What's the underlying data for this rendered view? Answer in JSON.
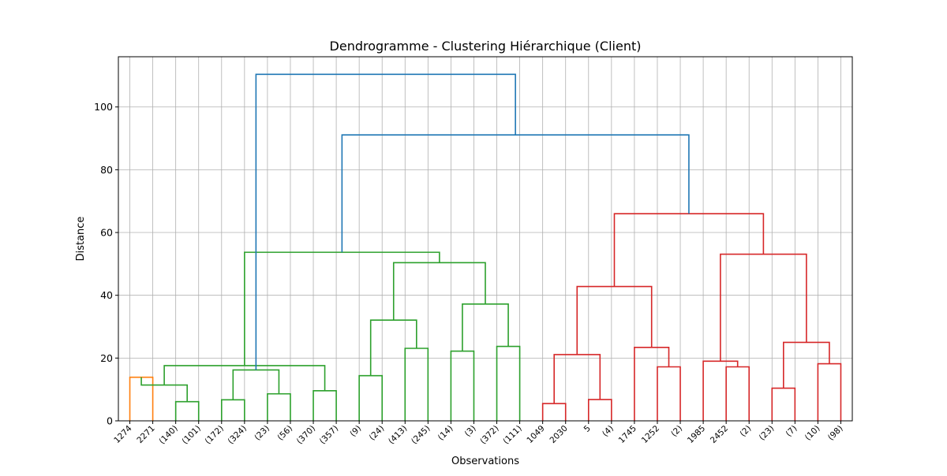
{
  "chart_data": {
    "type": "dendrogram",
    "title": "Dendrogramme - Clustering Hiérarchique (Client)",
    "xlabel": "Observations",
    "ylabel": "Distance",
    "ylim": [
      0,
      116
    ],
    "yticks": [
      0,
      20,
      40,
      60,
      80,
      100
    ],
    "grid": true,
    "leaves": [
      "1274",
      "2271",
      "(140)",
      "(101)",
      "(172)",
      "(324)",
      "(23)",
      "(56)",
      "(370)",
      "(357)",
      "(9)",
      "(24)",
      "(413)",
      "(245)",
      "(14)",
      "(3)",
      "(372)",
      "(111)",
      "1049",
      "2030",
      "5",
      "(4)",
      "1745",
      "1252",
      "(2)",
      "1985",
      "2452",
      "(2)",
      "(23)",
      "(7)",
      "(10)",
      "(98)"
    ],
    "colors": {
      "orange": "#ff7f0e",
      "green": "#2ca02c",
      "red": "#d62728",
      "blue": "#1f77b4",
      "grid": "#b0b0b0"
    },
    "links": [
      {
        "left": 0,
        "right": 1,
        "height": 13.9,
        "color": "orange"
      },
      {
        "left": 2,
        "right": 3,
        "height": 6.1,
        "color": "green"
      },
      {
        "left": 4,
        "right": 5,
        "height": 6.7,
        "color": "green"
      },
      {
        "left": 6,
        "right": 7,
        "height": 8.6,
        "color": "green"
      },
      {
        "left": 8,
        "right": 9,
        "height": 9.6,
        "color": "green"
      },
      {
        "left": 10,
        "right": 11,
        "height": 14.4,
        "color": "green"
      },
      {
        "left": 12,
        "right": 13,
        "height": 23.1,
        "color": "green"
      },
      {
        "left": 14,
        "right": 15,
        "height": 22.2,
        "color": "green"
      },
      {
        "left": 16,
        "right": 17,
        "height": 23.7,
        "color": "green"
      },
      {
        "left": 18,
        "right": 19,
        "height": 5.5,
        "color": "red"
      },
      {
        "left": 20,
        "right": 21,
        "height": 6.8,
        "color": "red"
      },
      {
        "left": 23,
        "right": 24,
        "height": 17.2,
        "color": "red"
      },
      {
        "left": 26,
        "right": 27,
        "height": 17.2,
        "color": "red"
      },
      {
        "left": 28,
        "right": 29,
        "height": 10.4,
        "color": "red"
      },
      {
        "left": 30,
        "right": 31,
        "height": 18.2,
        "color": "red"
      },
      {
        "left": 32,
        "right": 33,
        "height": 11.4,
        "color": "green"
      },
      {
        "left": 34,
        "right": 35,
        "height": 16.2,
        "color": "green"
      },
      {
        "left": 47,
        "right": 36,
        "height": 17.6,
        "color": "green"
      },
      {
        "left": 37,
        "right": 38,
        "height": 32.1,
        "color": "green"
      },
      {
        "left": 39,
        "right": 40,
        "height": 37.2,
        "color": "green"
      },
      {
        "left": 50,
        "right": 51,
        "height": 50.4,
        "color": "green"
      },
      {
        "left": 49,
        "right": 52,
        "height": 53.7,
        "color": "green"
      },
      {
        "left": 41,
        "right": 42,
        "height": 21.1,
        "color": "red"
      },
      {
        "left": 22,
        "right": 43,
        "height": 23.4,
        "color": "red"
      },
      {
        "left": 54,
        "right": 55,
        "height": 42.8,
        "color": "red"
      },
      {
        "left": 25,
        "right": 44,
        "height": 19.0,
        "color": "red"
      },
      {
        "left": 45,
        "right": 46,
        "height": 25.0,
        "color": "red"
      },
      {
        "left": 57,
        "right": 58,
        "height": 53.1,
        "color": "red"
      },
      {
        "left": 56,
        "right": 59,
        "height": 66.0,
        "color": "red"
      },
      {
        "left": 53,
        "right": 60,
        "height": 91.1,
        "color": "blue"
      },
      {
        "left": 48,
        "right": 61,
        "height": 110.4,
        "color": "blue"
      }
    ]
  }
}
